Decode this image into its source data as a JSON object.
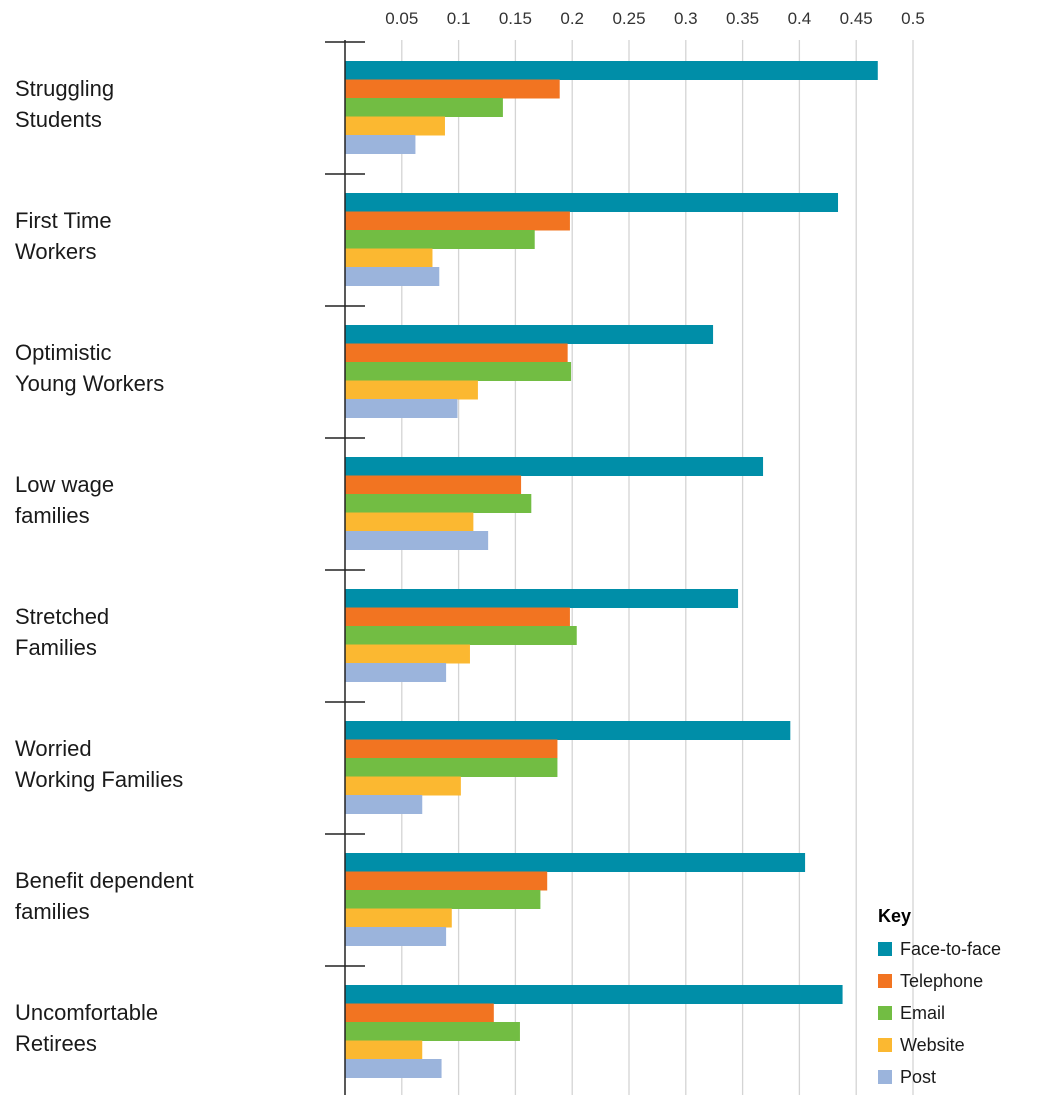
{
  "chart_data": {
    "type": "bar",
    "orientation": "horizontal",
    "xlim": [
      0,
      0.5
    ],
    "x_ticks": [
      "0.05",
      "0.1",
      "0.15",
      "0.2",
      "0.25",
      "0.3",
      "0.35",
      "0.4",
      "0.45",
      "0.5"
    ],
    "grid": "vertical",
    "legend_position": "bottom-right",
    "legend_title": "Key",
    "categories": [
      [
        "Struggling",
        "Students"
      ],
      [
        "First Time",
        "Workers"
      ],
      [
        "Optimistic",
        "Young Workers"
      ],
      [
        "Low wage",
        "families"
      ],
      [
        "Stretched",
        "Families"
      ],
      [
        "Worried",
        "Working Families"
      ],
      [
        "Benefit dependent",
        "families"
      ],
      [
        "Uncomfortable",
        "Retirees"
      ]
    ],
    "series": [
      {
        "name": "Face-to-face",
        "color": "#008ea8",
        "values": [
          0.469,
          0.434,
          0.324,
          0.368,
          0.346,
          0.392,
          0.405,
          0.438
        ]
      },
      {
        "name": "Telephone",
        "color": "#f27421",
        "values": [
          0.189,
          0.198,
          0.196,
          0.155,
          0.198,
          0.187,
          0.178,
          0.131
        ]
      },
      {
        "name": "Email",
        "color": "#72bd43",
        "values": [
          0.139,
          0.167,
          0.199,
          0.164,
          0.204,
          0.187,
          0.172,
          0.154
        ]
      },
      {
        "name": "Website",
        "color": "#fbb831",
        "values": [
          0.088,
          0.077,
          0.117,
          0.113,
          0.11,
          0.102,
          0.094,
          0.068
        ]
      },
      {
        "name": "Post",
        "color": "#9bb4dc",
        "values": [
          0.062,
          0.083,
          0.099,
          0.126,
          0.089,
          0.068,
          0.089,
          0.085
        ]
      }
    ]
  }
}
